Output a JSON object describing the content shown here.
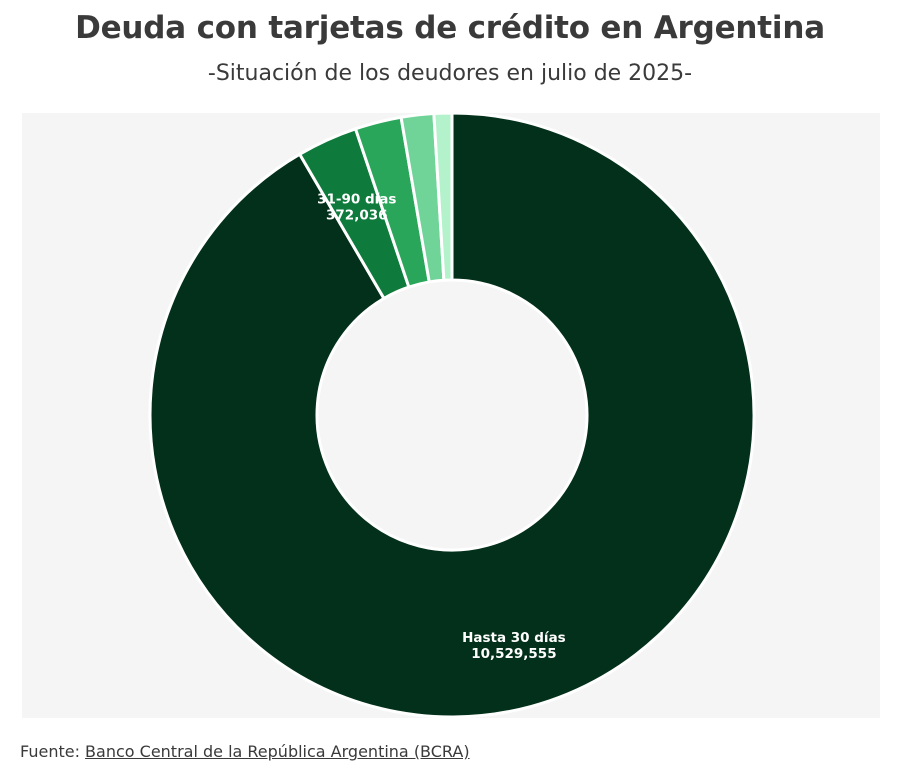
{
  "title": "Deuda con tarjetas de crédito en Argentina",
  "subtitle": "-Situación de los deudores en julio de 2025-",
  "source": {
    "prefix": "Fuente: ",
    "link_text": "Banco Central de la República Argentina (BCRA)"
  },
  "chart_data": {
    "type": "pie",
    "donut": true,
    "categories": [
      "Hasta 30 días",
      "31-90 días",
      "",
      "",
      ""
    ],
    "values": [
      10529555,
      372036,
      285000,
      200000,
      110000
    ],
    "colors": [
      "#03301a",
      "#0e7a3c",
      "#2aa65a",
      "#70d499",
      "#b4f2cc"
    ],
    "labels_shown": [
      {
        "name": "Hasta 30 días",
        "value_text": "10,529,555"
      },
      {
        "name": "31-90 días",
        "value_text": "372,036"
      }
    ],
    "legend": "none",
    "grid": false
  }
}
